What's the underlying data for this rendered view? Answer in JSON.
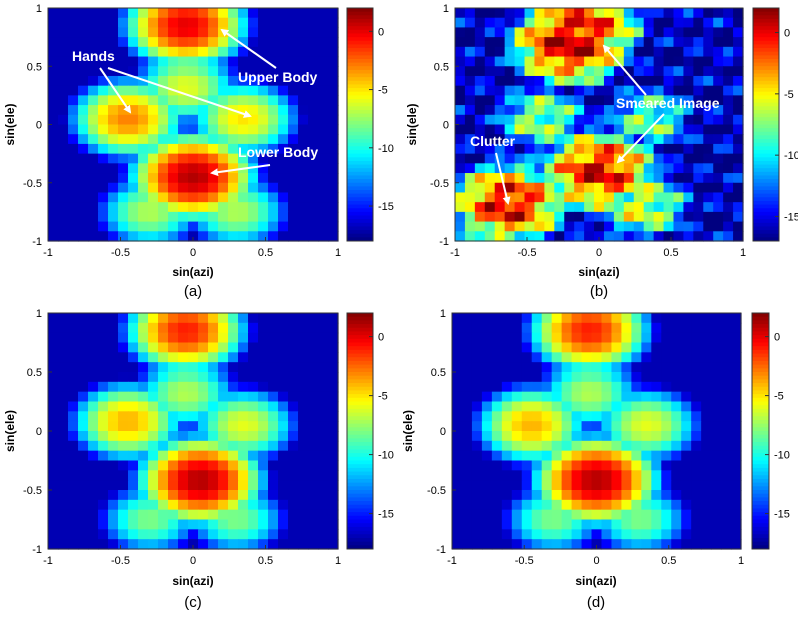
{
  "colormap_name": "jet",
  "chart_data": [
    {
      "type": "heatmap",
      "panel_label": "(a)",
      "xlabel": "sin(azi)",
      "ylabel": "sin(ele)",
      "xlim": [
        -1,
        1
      ],
      "ylim": [
        -1,
        1
      ],
      "xticks": [
        "-1",
        "-0.5",
        "0",
        "0.5",
        "1"
      ],
      "yticks": [
        "1",
        "0.5",
        "0",
        "-0.5",
        "-1"
      ],
      "colorbar": {
        "range": [
          -18,
          2
        ],
        "ticks": [
          "0",
          "-5",
          "-10",
          "-15"
        ]
      },
      "annotations": [
        "Hands",
        "Upper Body",
        "Lower Body"
      ],
      "blobs": [
        {
          "x": -0.05,
          "y": 0.85,
          "value": 0
        },
        {
          "x": -0.05,
          "y": 0.32,
          "value": -6
        },
        {
          "x": -0.45,
          "y": 0.05,
          "value": -3
        },
        {
          "x": 0.35,
          "y": 0.05,
          "value": -5
        },
        {
          "x": 0.0,
          "y": -0.45,
          "value": 1
        },
        {
          "x": -0.3,
          "y": -0.75,
          "value": -7
        },
        {
          "x": 0.3,
          "y": -0.75,
          "value": -7
        }
      ]
    },
    {
      "type": "heatmap",
      "panel_label": "(b)",
      "xlabel": "sin(azi)",
      "ylabel": "sin(ele)",
      "xlim": [
        -1,
        1
      ],
      "ylim": [
        -1,
        1
      ],
      "xticks": [
        "-1",
        "-0.5",
        "0",
        "0.5",
        "1"
      ],
      "yticks": [
        "1",
        "0.5",
        "0",
        "-0.5",
        "-1"
      ],
      "colorbar": {
        "range": [
          -17,
          2
        ],
        "ticks": [
          "0",
          "-5",
          "-10",
          "-15"
        ]
      },
      "annotations": [
        "Smeared Image",
        "Clutter"
      ],
      "blobs": [
        {
          "x": -0.1,
          "y": 0.85,
          "value": -1
        },
        {
          "x": -0.2,
          "y": 0.7,
          "value": 1
        },
        {
          "x": -0.4,
          "y": 0.05,
          "value": -7
        },
        {
          "x": 0.35,
          "y": 0.05,
          "value": -8
        },
        {
          "x": 0.0,
          "y": -0.4,
          "value": 0
        },
        {
          "x": -0.63,
          "y": -0.68,
          "value": 0
        },
        {
          "x": 0.3,
          "y": -0.7,
          "value": -6
        }
      ]
    },
    {
      "type": "heatmap",
      "panel_label": "(c)",
      "xlabel": "sin(azi)",
      "ylabel": "sin(ele)",
      "xlim": [
        -1,
        1
      ],
      "ylim": [
        -1,
        1
      ],
      "xticks": [
        "-1",
        "-0.5",
        "0",
        "0.5",
        "1"
      ],
      "yticks": [
        "1",
        "0.5",
        "0",
        "-0.5",
        "-1"
      ],
      "colorbar": {
        "range": [
          -18,
          2
        ],
        "ticks": [
          "0",
          "-5",
          "-10",
          "-15"
        ]
      },
      "annotations": [],
      "blobs": [
        {
          "x": -0.05,
          "y": 0.85,
          "value": -1
        },
        {
          "x": -0.05,
          "y": 0.32,
          "value": -7
        },
        {
          "x": -0.45,
          "y": 0.08,
          "value": -4
        },
        {
          "x": 0.35,
          "y": 0.05,
          "value": -6
        },
        {
          "x": 0.05,
          "y": -0.42,
          "value": 1
        },
        {
          "x": -0.3,
          "y": -0.75,
          "value": -8
        },
        {
          "x": 0.3,
          "y": -0.75,
          "value": -8
        }
      ]
    },
    {
      "type": "heatmap",
      "panel_label": "(d)",
      "xlabel": "sin(azi)",
      "ylabel": "sin(ele)",
      "xlim": [
        -1,
        1
      ],
      "ylim": [
        -1,
        1
      ],
      "xticks": [
        "-1",
        "-0.5",
        "0",
        "0.5",
        "1"
      ],
      "yticks": [
        "1",
        "0.5",
        "0",
        "-0.5",
        "-1"
      ],
      "colorbar": {
        "range": [
          -18,
          2
        ],
        "ticks": [
          "0",
          "-5",
          "-10",
          "-15"
        ]
      },
      "annotations": [],
      "blobs": [
        {
          "x": -0.05,
          "y": 0.85,
          "value": -1
        },
        {
          "x": -0.05,
          "y": 0.32,
          "value": -7
        },
        {
          "x": -0.45,
          "y": 0.05,
          "value": -4
        },
        {
          "x": 0.35,
          "y": 0.05,
          "value": -6
        },
        {
          "x": 0.0,
          "y": -0.42,
          "value": 1
        },
        {
          "x": -0.3,
          "y": -0.75,
          "value": -8
        },
        {
          "x": 0.3,
          "y": -0.75,
          "value": -8
        }
      ]
    }
  ]
}
